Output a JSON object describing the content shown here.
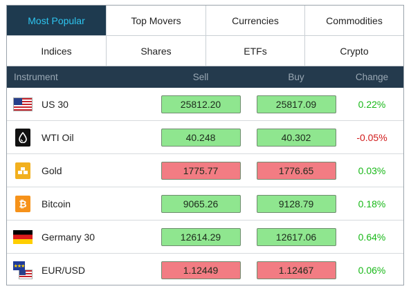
{
  "tabs": [
    {
      "label": "Most Popular",
      "active": true
    },
    {
      "label": "Top Movers",
      "active": false
    },
    {
      "label": "Currencies",
      "active": false
    },
    {
      "label": "Commodities",
      "active": false
    },
    {
      "label": "Indices",
      "active": false
    },
    {
      "label": "Shares",
      "active": false
    },
    {
      "label": "ETFs",
      "active": false
    },
    {
      "label": "Crypto",
      "active": false
    }
  ],
  "columns": {
    "instrument": "Instrument",
    "sell": "Sell",
    "buy": "Buy",
    "change": "Change"
  },
  "rows": [
    {
      "name": "US 30",
      "icon": "us-flag-icon",
      "sell": "25812.20",
      "buy": "25817.09",
      "change": "0.22%",
      "direction": "up"
    },
    {
      "name": "WTI Oil",
      "icon": "oil-drop-icon",
      "sell": "40.248",
      "buy": "40.302",
      "change": "-0.05%",
      "direction": "up"
    },
    {
      "name": "Gold",
      "icon": "gold-bars-icon",
      "sell": "1775.77",
      "buy": "1776.65",
      "change": "0.03%",
      "direction": "down"
    },
    {
      "name": "Bitcoin",
      "icon": "bitcoin-icon",
      "sell": "9065.26",
      "buy": "9128.79",
      "change": "0.18%",
      "direction": "up"
    },
    {
      "name": "Germany 30",
      "icon": "germany-flag-icon",
      "sell": "12614.29",
      "buy": "12617.06",
      "change": "0.64%",
      "direction": "up"
    },
    {
      "name": "EUR/USD",
      "icon": "eur-usd-flags-icon",
      "sell": "1.12449",
      "buy": "1.12467",
      "change": "0.06%",
      "direction": "down"
    }
  ],
  "colors": {
    "tab_active_bg": "#1e3a4f",
    "tab_active_text": "#2ec5f0",
    "header_bg": "#243a4d",
    "up": "#8fe68f",
    "down": "#f27c83",
    "positive": "#18b818",
    "negative": "#d11a1a"
  }
}
